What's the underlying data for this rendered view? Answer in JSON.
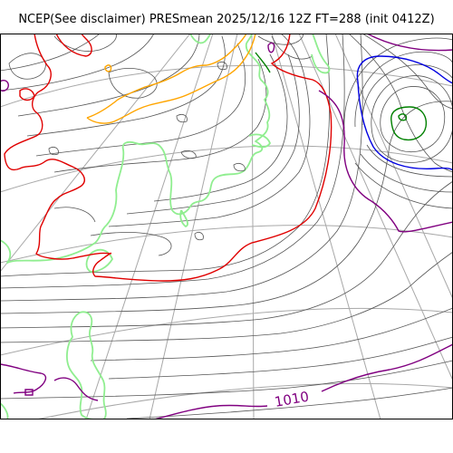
{
  "title": "NCEP(See disclaimer) PRESmean 2025/12/16 12Z FT=288 (init 0412Z)",
  "map": {
    "field": "PRESmean",
    "contour_label": "1010",
    "colors": {
      "background": "#ffffff",
      "frame": "#000000",
      "graticule": "#a8a8a8",
      "isobar": "#555555",
      "coastline": "#90ee90",
      "contour_red": "#e00000",
      "contour_purple": "#800080",
      "contour_blue": "#0000e0",
      "contour_green": "#008000",
      "contour_orange": "#ffa500"
    }
  }
}
